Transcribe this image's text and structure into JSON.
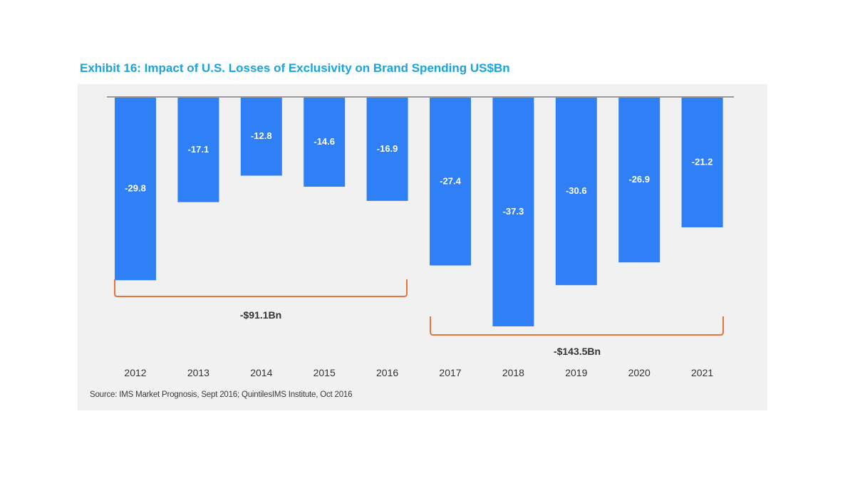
{
  "title": "Exhibit 16: Impact of U.S. Losses of Exclusivity on Brand Spending US$Bn",
  "source": "Source: IMS Market Prognosis, Sept 2016; QuintilesIMS Institute, Oct 2016",
  "colors": {
    "bar": "#2f7ff6",
    "bracket": "#e8733f",
    "title": "#1aa3dc",
    "panel": "#f1f1f1"
  },
  "chart_data": {
    "type": "bar",
    "categories": [
      "2012",
      "2013",
      "2014",
      "2015",
      "2016",
      "2017",
      "2018",
      "2019",
      "2020",
      "2021"
    ],
    "values": [
      -29.8,
      -17.1,
      -12.8,
      -14.6,
      -16.9,
      -27.4,
      -37.3,
      -30.6,
      -26.9,
      -21.2
    ],
    "data_labels": [
      "-29.8",
      "-17.1",
      "-12.8",
      "-14.6",
      "-16.9",
      "-27.4",
      "-37.3",
      "-30.6",
      "-26.9",
      "-21.2"
    ],
    "ylim": [
      -37.3,
      0
    ],
    "grid": false,
    "brackets": [
      {
        "from": "2012",
        "to": "2016",
        "label": "-$91.1Bn"
      },
      {
        "from": "2017",
        "to": "2021",
        "label": "-$143.5Bn"
      }
    ]
  }
}
